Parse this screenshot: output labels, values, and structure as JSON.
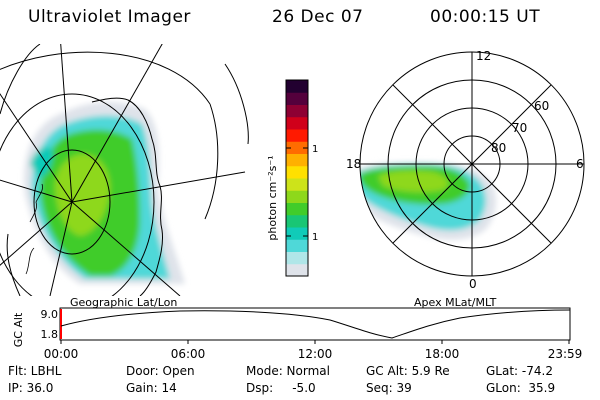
{
  "header": {
    "title": "Ultraviolet Imager",
    "date": "26 Dec 07",
    "time": "00:00:15 UT"
  },
  "left_panel": {
    "label": "Geographic Lat/Lon"
  },
  "right_panel": {
    "label": "Apex MLat/MLT",
    "mlt_labels": {
      "top": "12",
      "left": "18",
      "right": "6",
      "bottom": "0"
    },
    "lat_labels": [
      "60",
      "70",
      "80"
    ]
  },
  "colorbar": {
    "unit_label": "photon cm⁻²s⁻¹",
    "tick_labels": [
      "100",
      "10"
    ],
    "colors": [
      "#dfe3ea",
      "#b0e6e8",
      "#4fd8d8",
      "#10cbb8",
      "#19c675",
      "#41cc2a",
      "#8ed81b",
      "#cde31a",
      "#ffe000",
      "#ffb000",
      "#ff6c00",
      "#ff1a00",
      "#d0001a",
      "#8e0033",
      "#54003c",
      "#220030"
    ]
  },
  "timeline": {
    "y_axis_label": "GC Alt",
    "y_ticks": [
      "9.0",
      "1.8"
    ],
    "x_ticks": [
      "00:00",
      "06:00",
      "12:00",
      "18:00",
      "23:59"
    ]
  },
  "status": {
    "flt": "Flt: LBHL",
    "ip": "IP: 36.0",
    "door": "Door: Open",
    "gain": "Gain: 14",
    "mode": "Mode: Normal",
    "dsp": "Dsp:     -5.0",
    "gc_alt": "GC Alt: 5.9 Re",
    "seq": "Seq: 39",
    "glat": "GLat: -74.2",
    "glon": "GLon:  35.9"
  }
}
